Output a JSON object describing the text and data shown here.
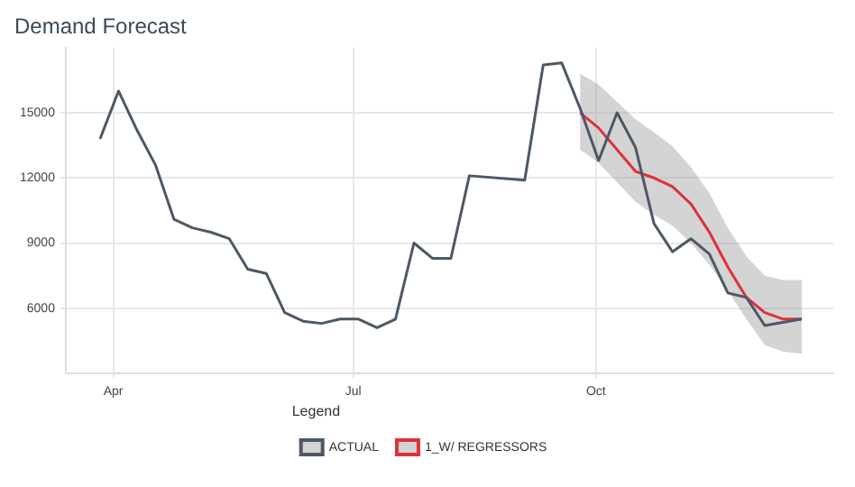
{
  "chart_data": {
    "type": "line",
    "title": "Demand Forecast",
    "legend_title": "Legend",
    "legend": "bottom",
    "grid": true,
    "marker": "none",
    "line_style": "solid",
    "xlim": [
      "--03-14",
      "--12-30"
    ],
    "xticks": [
      {
        "value": "--04-01",
        "label": "Apr"
      },
      {
        "value": "--07-01",
        "label": "Jul"
      },
      {
        "value": "--10-01",
        "label": "Oct"
      }
    ],
    "ylim": [
      3000,
      18000
    ],
    "yticks": [
      6000,
      9000,
      12000,
      15000
    ],
    "series": [
      {
        "name": "ACTUAL",
        "color": "#4d5866",
        "x": [
          "--03-27",
          "--04-03",
          "--04-10",
          "--04-17",
          "--04-24",
          "--05-01",
          "--05-08",
          "--05-15",
          "--05-22",
          "--05-29",
          "--06-05",
          "--06-12",
          "--06-19",
          "--06-26",
          "--07-03",
          "--07-10",
          "--07-17",
          "--07-24",
          "--07-31",
          "--08-07",
          "--08-14",
          "--09-04",
          "--09-11",
          "--09-18",
          "--09-25",
          "--10-02",
          "--10-09",
          "--10-16",
          "--10-23",
          "--10-30",
          "--11-06",
          "--11-13",
          "--11-20",
          "--11-27",
          "--12-04",
          "--12-18"
        ],
        "values": [
          13800,
          16000,
          14200,
          12600,
          10100,
          9700,
          9500,
          9200,
          7800,
          7600,
          5800,
          5400,
          5300,
          5500,
          5500,
          5100,
          5500,
          9000,
          8300,
          8300,
          12100,
          11900,
          17200,
          17300,
          15200,
          12800,
          15000,
          13400,
          9900,
          8600,
          9200,
          8500,
          6700,
          6500,
          5200,
          5500
        ]
      },
      {
        "name": "1_W/ REGRESSORS",
        "color": "#e0303a",
        "x": [
          "--09-25",
          "--10-02",
          "--10-09",
          "--10-16",
          "--10-23",
          "--10-30",
          "--11-06",
          "--11-13",
          "--11-20",
          "--11-27",
          "--12-04",
          "--12-11",
          "--12-18"
        ],
        "values": [
          15000,
          14300,
          13300,
          12300,
          12000,
          11600,
          10800,
          9500,
          7900,
          6500,
          5800,
          5500,
          5500
        ],
        "lower": [
          13300,
          12700,
          11800,
          10900,
          10300,
          9800,
          9000,
          8000,
          6800,
          5500,
          4300,
          4000,
          3900
        ],
        "upper": [
          16800,
          16300,
          15500,
          14700,
          14100,
          13450,
          12500,
          11300,
          9700,
          8400,
          7500,
          7300,
          7300
        ]
      }
    ]
  }
}
